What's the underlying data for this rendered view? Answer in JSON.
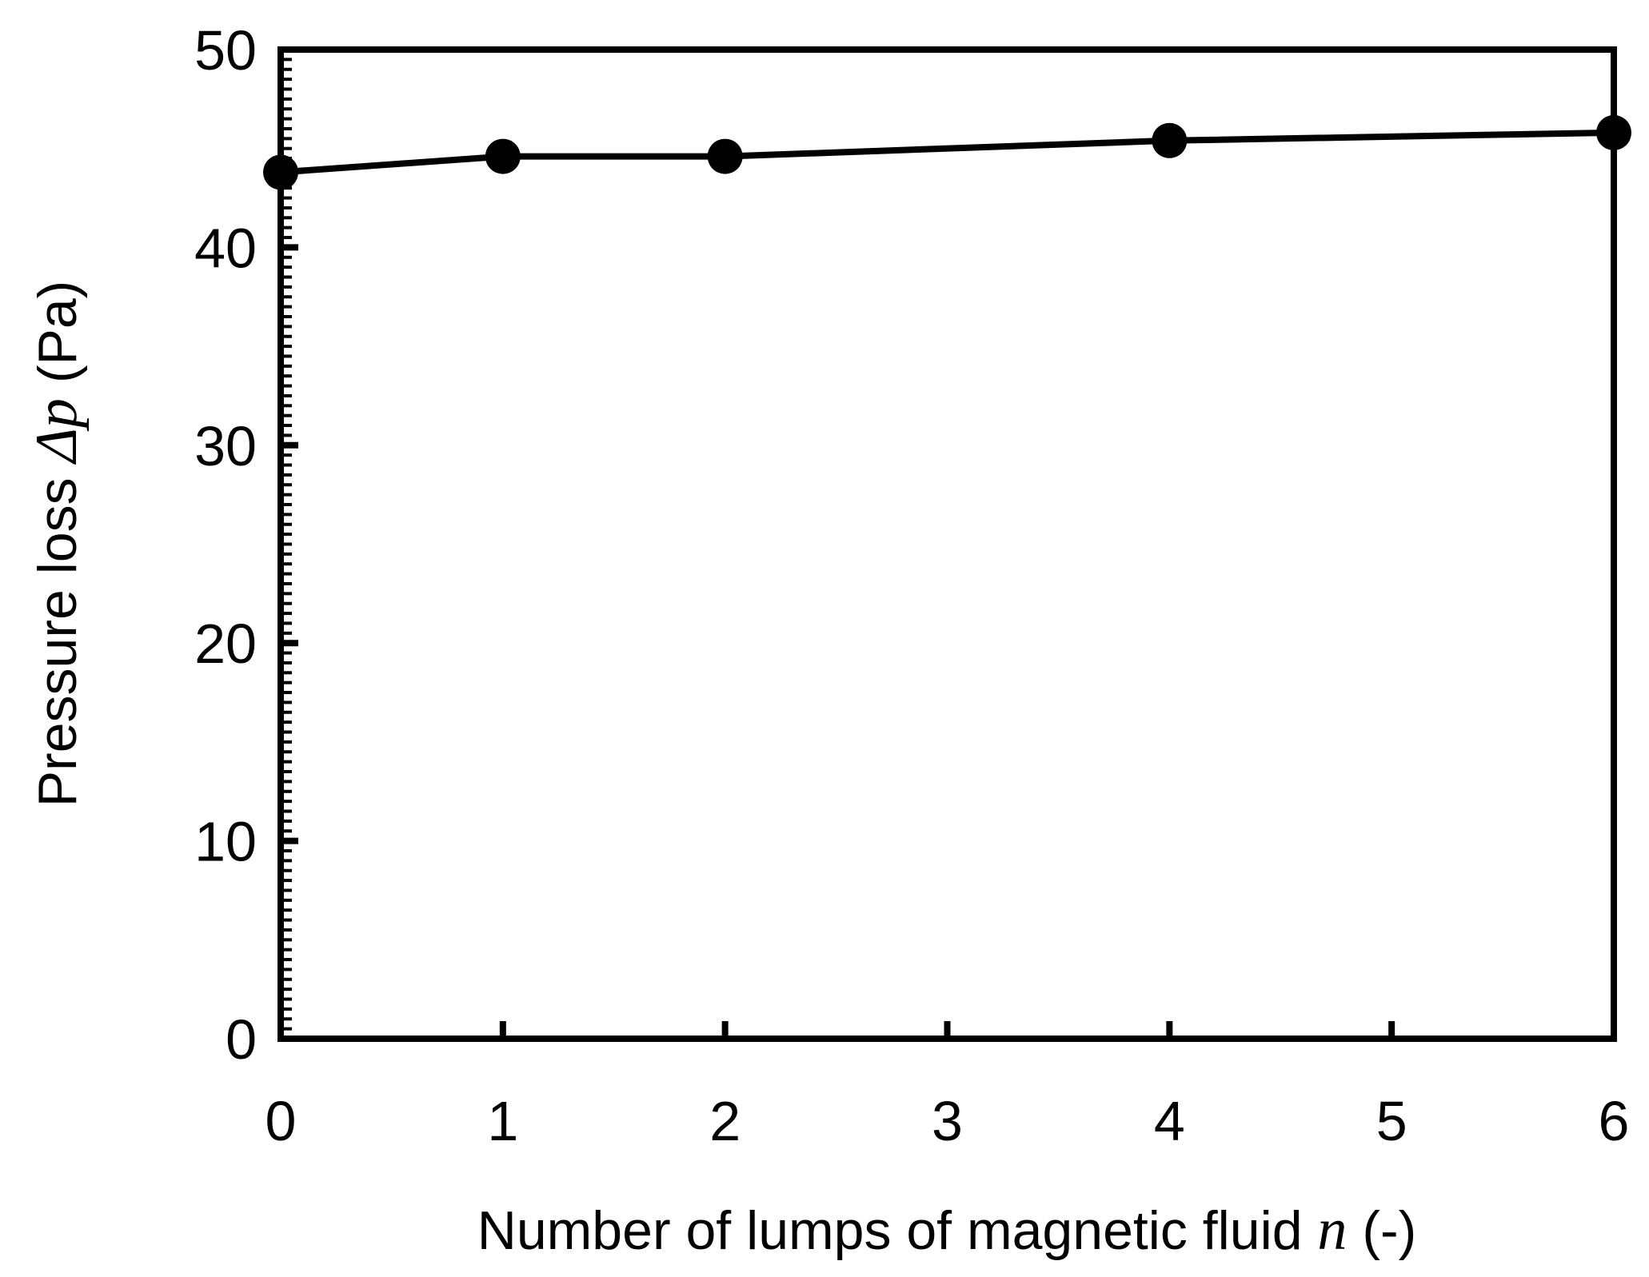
{
  "chart_data": {
    "type": "line",
    "x": [
      0,
      1,
      2,
      4,
      6
    ],
    "y": [
      43.8,
      44.6,
      44.6,
      45.4,
      45.8
    ],
    "markers": "filled-circle",
    "line_color": "#000000",
    "marker_color": "#000000",
    "xlim": [
      0,
      6
    ],
    "ylim": [
      0,
      50
    ],
    "xticks": [
      0,
      1,
      2,
      3,
      4,
      5,
      6
    ],
    "yticks": [
      0,
      10,
      20,
      30,
      40,
      50
    ],
    "xtick_labels": [
      "0",
      "1",
      "2",
      "3",
      "4",
      "5",
      "6"
    ],
    "ytick_labels": [
      "0",
      "10",
      "20",
      "30",
      "40",
      "50"
    ],
    "xlabel": {
      "prefix": "Number of lumps of magnetic fluid ",
      "symbol": "n",
      "suffix": " (-)"
    },
    "ylabel": {
      "prefix": "Pressure loss ",
      "symbol": "Δp",
      "suffix": " (Pa)"
    },
    "grid": false,
    "legend": "none"
  }
}
